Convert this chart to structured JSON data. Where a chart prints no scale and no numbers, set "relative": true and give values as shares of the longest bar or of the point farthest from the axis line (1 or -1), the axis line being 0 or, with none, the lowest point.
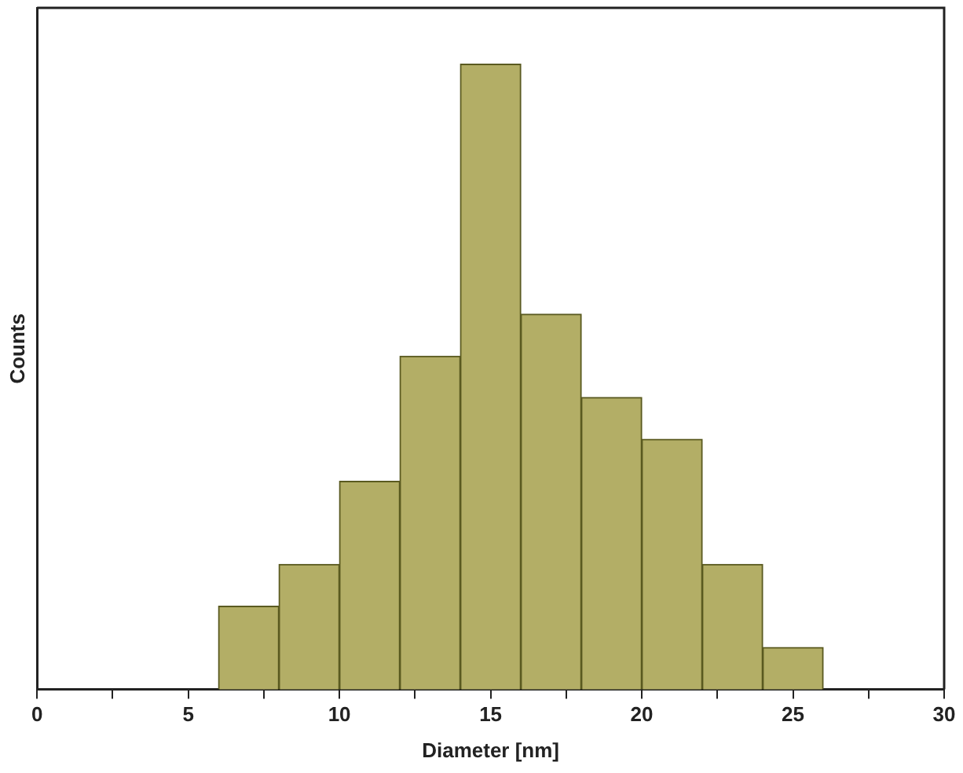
{
  "chart_data": {
    "type": "bar",
    "xlabel": "Diameter [nm]",
    "ylabel": "Counts",
    "relative": true,
    "x": [
      7,
      9,
      11,
      13,
      15,
      17,
      19,
      21,
      23,
      25
    ],
    "values": [
      0.133,
      0.2,
      0.333,
      0.533,
      1,
      0.6,
      0.467,
      0.4,
      0.2,
      0.067
    ],
    "color": "#b3ae66",
    "xlim": [
      0,
      30
    ],
    "xticks": [
      0,
      {
        "value": 2.5,
        "label": null
      },
      5,
      {
        "value": 7.5,
        "label": null
      },
      10,
      {
        "value": 12.5,
        "label": null
      },
      15,
      {
        "value": 17.5,
        "label": null
      },
      20,
      {
        "value": 22.5,
        "label": null
      },
      25,
      {
        "value": 27.5,
        "label": null
      },
      30
    ],
    "grid": false,
    "legend": false
  }
}
